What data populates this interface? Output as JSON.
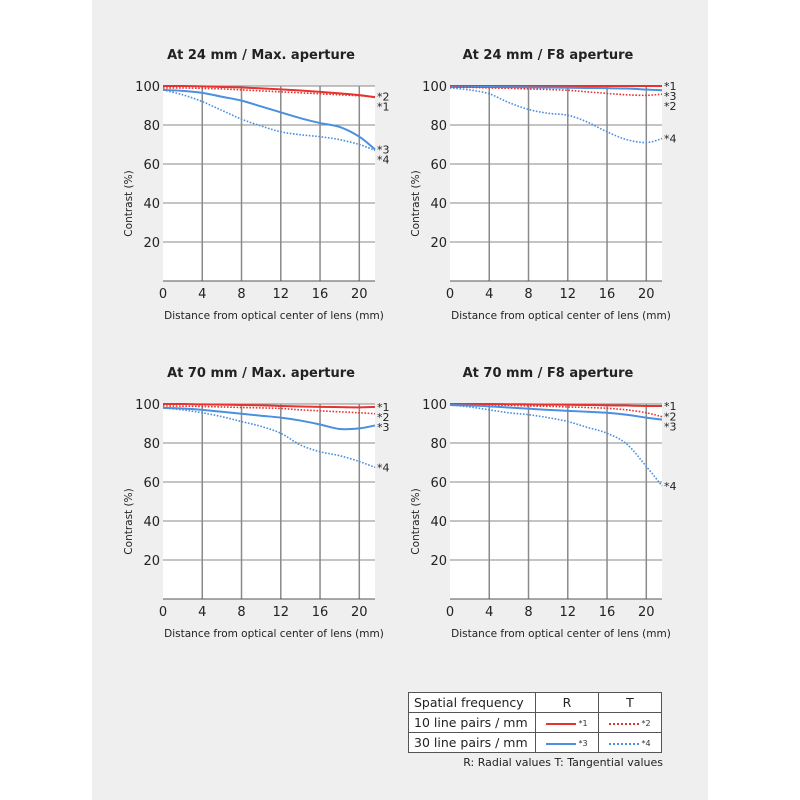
{
  "colors": {
    "red": "#e8322e",
    "blue": "#4a8fe0",
    "grid": "#8a8a8a",
    "panel": "#efefef"
  },
  "chart_data": [
    {
      "type": "line",
      "title": "At 24 mm / Max. aperture",
      "xlabel": "Distance from optical center of lens (mm)",
      "ylabel": "Contrast (%)",
      "xlim": [
        0,
        21.6
      ],
      "ylim": [
        0,
        100
      ],
      "xticks": [
        0,
        4,
        8,
        12,
        16,
        20
      ],
      "yticks": [
        20,
        40,
        60,
        80,
        100
      ],
      "grid": true,
      "x": [
        0,
        2,
        4,
        6,
        8,
        10,
        12,
        14,
        16,
        18,
        20,
        21.6
      ],
      "series": [
        {
          "name": "*1",
          "style": "solid",
          "color": "red",
          "values": [
            100,
            100,
            99.8,
            99.5,
            99.2,
            98.8,
            98.3,
            97.7,
            97,
            96.2,
            95.3,
            94.2
          ]
        },
        {
          "name": "*2",
          "style": "dotted",
          "color": "red",
          "values": [
            99,
            99,
            98.8,
            98.5,
            98,
            97.5,
            97,
            96.5,
            96,
            95.5,
            95,
            94.5
          ]
        },
        {
          "name": "*3",
          "style": "solid",
          "color": "blue",
          "values": [
            98,
            97.5,
            96.5,
            94.5,
            92.5,
            89.5,
            86.5,
            83.5,
            81,
            79,
            74,
            67.5
          ]
        },
        {
          "name": "*4",
          "style": "dotted",
          "color": "blue",
          "values": [
            98,
            95.5,
            92,
            87.5,
            83,
            79.5,
            76.5,
            75,
            74,
            72.5,
            70,
            67
          ]
        }
      ]
    },
    {
      "type": "line",
      "title": "At 24 mm / F8 aperture",
      "xlabel": "Distance from optical center of lens (mm)",
      "ylabel": "Contrast (%)",
      "xlim": [
        0,
        21.6
      ],
      "ylim": [
        0,
        100
      ],
      "xticks": [
        0,
        4,
        8,
        12,
        16,
        20
      ],
      "yticks": [
        20,
        40,
        60,
        80,
        100
      ],
      "grid": true,
      "x": [
        0,
        2,
        4,
        6,
        8,
        10,
        12,
        14,
        16,
        18,
        20,
        21.6
      ],
      "series": [
        {
          "name": "*1",
          "style": "solid",
          "color": "red",
          "values": [
            100,
            100,
            100,
            100,
            100,
            100,
            100,
            100,
            100,
            100,
            100,
            100
          ]
        },
        {
          "name": "*3",
          "style": "solid",
          "color": "blue",
          "values": [
            99.5,
            99.5,
            99.5,
            99.4,
            99.3,
            99.2,
            99.1,
            99,
            98.9,
            98.7,
            98.2,
            97.8
          ]
        },
        {
          "name": "*2",
          "style": "dotted",
          "color": "red",
          "values": [
            99.5,
            99.3,
            99,
            98.8,
            98.5,
            98.2,
            97.8,
            97,
            96.2,
            95.5,
            95.2,
            95.8
          ]
        },
        {
          "name": "*4",
          "style": "dotted",
          "color": "blue",
          "values": [
            99,
            98,
            96,
            91.5,
            88,
            86,
            85,
            81.5,
            76.5,
            72.5,
            71,
            73
          ]
        }
      ]
    },
    {
      "type": "line",
      "title": "At 70 mm / Max. aperture",
      "xlabel": "Distance from optical center of lens (mm)",
      "ylabel": "Contrast (%)",
      "xlim": [
        0,
        21.6
      ],
      "ylim": [
        0,
        100
      ],
      "xticks": [
        0,
        4,
        8,
        12,
        16,
        20
      ],
      "yticks": [
        20,
        40,
        60,
        80,
        100
      ],
      "grid": true,
      "x": [
        0,
        2,
        4,
        6,
        8,
        10,
        12,
        14,
        16,
        18,
        20,
        21.6
      ],
      "series": [
        {
          "name": "*1",
          "style": "solid",
          "color": "red",
          "values": [
            100,
            100,
            99.8,
            99.7,
            99.5,
            99.3,
            99,
            98.7,
            98.5,
            98.4,
            98.3,
            98.5
          ]
        },
        {
          "name": "*2",
          "style": "dotted",
          "color": "red",
          "values": [
            99,
            98.9,
            98.7,
            98.5,
            98.2,
            98,
            97.7,
            97,
            96.5,
            96,
            95.5,
            95
          ]
        },
        {
          "name": "*3",
          "style": "solid",
          "color": "blue",
          "values": [
            98,
            97.7,
            97,
            96,
            95,
            94,
            93,
            91.5,
            89.5,
            87.2,
            87.5,
            89
          ]
        },
        {
          "name": "*4",
          "style": "dotted",
          "color": "blue",
          "values": [
            98,
            97,
            95.5,
            93.5,
            91,
            88.5,
            85,
            79,
            75.5,
            73.5,
            70.5,
            67.5
          ]
        }
      ]
    },
    {
      "type": "line",
      "title": "At 70 mm / F8 aperture",
      "xlabel": "Distance from optical center of lens (mm)",
      "ylabel": "Contrast (%)",
      "xlim": [
        0,
        21.6
      ],
      "ylim": [
        0,
        100
      ],
      "xticks": [
        0,
        4,
        8,
        12,
        16,
        20
      ],
      "yticks": [
        20,
        40,
        60,
        80,
        100
      ],
      "grid": true,
      "x": [
        0,
        2,
        4,
        6,
        8,
        10,
        12,
        14,
        16,
        18,
        20,
        21.6
      ],
      "series": [
        {
          "name": "*1",
          "style": "solid",
          "color": "red",
          "values": [
            100,
            100,
            100,
            99.9,
            99.8,
            99.7,
            99.6,
            99.5,
            99.3,
            99.2,
            99,
            99
          ]
        },
        {
          "name": "*2",
          "style": "dotted",
          "color": "red",
          "values": [
            99.8,
            99.7,
            99.5,
            99.3,
            99,
            98.8,
            98.5,
            98.2,
            97.8,
            97,
            95.5,
            93.5
          ]
        },
        {
          "name": "*3",
          "style": "solid",
          "color": "blue",
          "values": [
            99.5,
            99.2,
            98.8,
            98.2,
            97.6,
            97,
            96.5,
            96,
            95.5,
            94.5,
            93,
            92
          ]
        },
        {
          "name": "*4",
          "style": "dotted",
          "color": "blue",
          "values": [
            99.5,
            98.5,
            97,
            95.5,
            94.5,
            93,
            91,
            88,
            85,
            79.5,
            68,
            58
          ]
        }
      ]
    }
  ],
  "legend": {
    "header": [
      "Spatial frequency",
      "R",
      "T"
    ],
    "rows": [
      {
        "label": "10 line pairs / mm",
        "r": "*1",
        "t": "*2",
        "color": "red"
      },
      {
        "label": "30 line pairs / mm",
        "r": "*3",
        "t": "*4",
        "color": "blue"
      }
    ],
    "note": "R: Radial values  T: Tangential values"
  }
}
